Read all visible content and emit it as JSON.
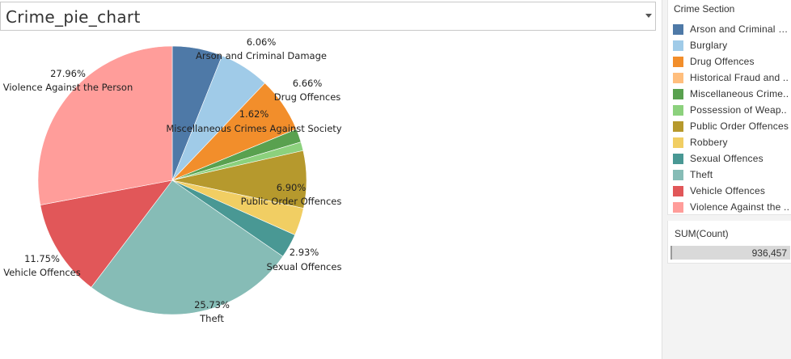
{
  "sheet": {
    "title": "Crime_pie_chart"
  },
  "legend": {
    "title": "Crime Section",
    "items": [
      {
        "label": "Arson and Criminal D..",
        "color": "#4e79a7"
      },
      {
        "label": "Burglary",
        "color": "#a0cbe8"
      },
      {
        "label": "Drug Offences",
        "color": "#f28e2b"
      },
      {
        "label": "Historical Fraud and ..",
        "color": "#ffbe7d"
      },
      {
        "label": "Miscellaneous Crime..",
        "color": "#59a14f"
      },
      {
        "label": "Possession of Weap..",
        "color": "#8cd17d"
      },
      {
        "label": "Public Order Offences",
        "color": "#b6992d"
      },
      {
        "label": "Robbery",
        "color": "#f1ce63"
      },
      {
        "label": "Sexual Offences",
        "color": "#499894"
      },
      {
        "label": "Theft",
        "color": "#86bcb6"
      },
      {
        "label": "Vehicle Offences",
        "color": "#e15759"
      },
      {
        "label": "Violence Against the ..",
        "color": "#ff9d9a"
      }
    ]
  },
  "size_legend": {
    "title": "SUM(Count)",
    "value": "936,457"
  },
  "chart_data": {
    "type": "pie",
    "measure": "SUM(Count)",
    "total": 936457,
    "slices": [
      {
        "name": "Arson and Criminal Damage",
        "value": 6.06,
        "color": "#4e79a7",
        "pct_label": "6.06%",
        "name_label": "Arson and Criminal Damage"
      },
      {
        "name": "Burglary",
        "value": 6.06,
        "color": "#a0cbe8"
      },
      {
        "name": "Drug Offences",
        "value": 6.66,
        "color": "#f28e2b",
        "pct_label": "6.66%",
        "name_label": "Drug Offences"
      },
      {
        "name": "Historical Fraud and Forgery",
        "value": 0.01,
        "color": "#ffbe7d"
      },
      {
        "name": "Miscellaneous Crimes Against Society",
        "value": 1.62,
        "color": "#59a14f",
        "pct_label": "1.62%",
        "name_label": "Miscellaneous Crimes Against Society"
      },
      {
        "name": "Possession of Weapons",
        "value": 1.05,
        "color": "#8cd17d"
      },
      {
        "name": "Public Order Offences",
        "value": 6.9,
        "color": "#b6992d",
        "pct_label": "6.90%",
        "name_label": "Public Order Offences"
      },
      {
        "name": "Robbery",
        "value": 3.33,
        "color": "#f1ce63"
      },
      {
        "name": "Sexual Offences",
        "value": 2.93,
        "color": "#499894",
        "pct_label": "2.93%",
        "name_label": "Sexual Offences"
      },
      {
        "name": "Theft",
        "value": 25.73,
        "color": "#86bcb6",
        "pct_label": "25.73%",
        "name_label": "Theft"
      },
      {
        "name": "Vehicle Offences",
        "value": 11.75,
        "color": "#e15759",
        "pct_label": "11.75%",
        "name_label": "Vehicle Offences"
      },
      {
        "name": "Violence Against the Person",
        "value": 27.96,
        "color": "#ff9d9a",
        "pct_label": "27.96%",
        "name_label": "Violence Against the Person"
      }
    ]
  }
}
